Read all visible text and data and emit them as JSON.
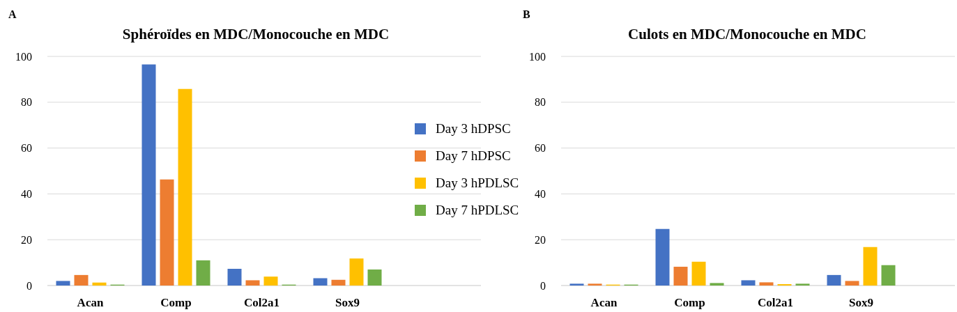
{
  "chart_data": [
    {
      "type": "bar",
      "title": "Sphéroïdes en MDC/Monocouche en MDC",
      "annotations": [
        "A"
      ],
      "categories": [
        "Acan",
        "Comp",
        "Col2a1",
        "Sox9"
      ],
      "series": [
        {
          "name": "Day 3 hDPSC",
          "color": "#4472c4",
          "values": [
            2,
            96.5,
            7.3,
            3.2
          ]
        },
        {
          "name": "Day 7 hDPSC",
          "color": "#ed7d31",
          "values": [
            4.6,
            46.3,
            2.3,
            2.5
          ]
        },
        {
          "name": "Day 3 hPDLSC",
          "color": "#ffc000",
          "values": [
            1.3,
            85.8,
            3.9,
            11.8
          ]
        },
        {
          "name": "Day 7 hPDLSC",
          "color": "#70ad47",
          "values": [
            0.4,
            11,
            0.4,
            7
          ]
        }
      ],
      "ylim": [
        0,
        100
      ],
      "yticks": [
        0,
        20,
        40,
        60,
        80,
        100
      ],
      "grid": "y",
      "legend": "right"
    },
    {
      "type": "bar",
      "title": "Culots en MDC/Monocouche en MDC",
      "annotations": [
        "B"
      ],
      "categories": [
        "Acan",
        "Comp",
        "Col2a1",
        "Sox9"
      ],
      "series": [
        {
          "color": "#4472c4",
          "values": [
            0.8,
            24.7,
            2.3,
            4.6
          ]
        },
        {
          "color": "#ed7d31",
          "values": [
            0.8,
            8.2,
            1.4,
            2
          ]
        },
        {
          "color": "#ffc000",
          "values": [
            0.4,
            10.4,
            0.6,
            16.8
          ]
        },
        {
          "color": "#70ad47",
          "values": [
            0.4,
            1.1,
            0.8,
            8.9
          ]
        }
      ],
      "ylim": [
        0,
        100
      ],
      "yticks": [
        0,
        20,
        40,
        60,
        80,
        100
      ],
      "grid": "y",
      "legend": false
    }
  ]
}
